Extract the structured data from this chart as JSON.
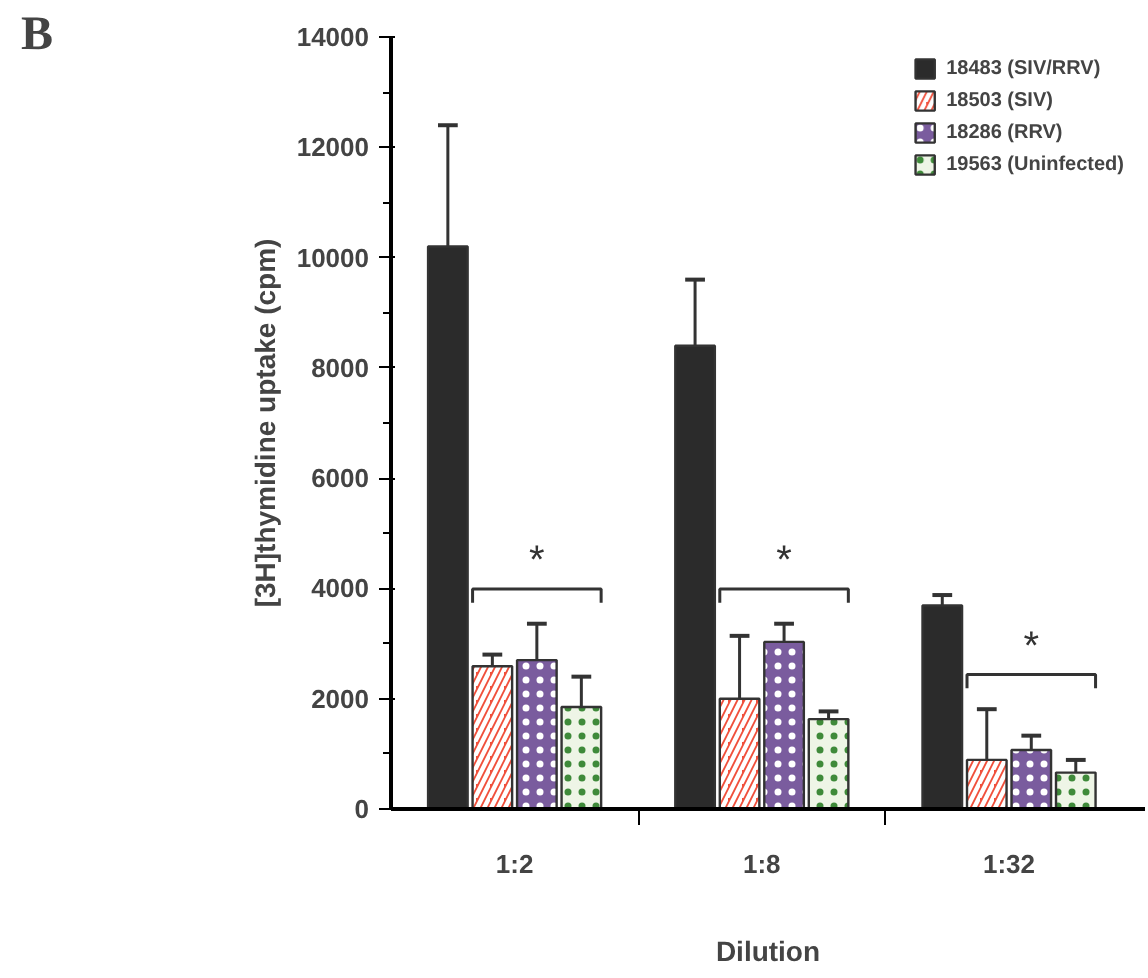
{
  "chart_data": {
    "type": "bar",
    "xlabel": "Dilution",
    "ylabel": "[3H]thymidine uptake (cpm)",
    "categories": [
      "1:2",
      "1:8",
      "1:32"
    ],
    "series": [
      {
        "name": "18483 (SIV/RRV)",
        "color": "#2b2b2b",
        "values": [
          10200,
          8400,
          3690
        ],
        "errors": [
          [
            10200,
            12400
          ],
          [
            8400,
            9600
          ],
          [
            3690,
            3880
          ]
        ]
      },
      {
        "name": "18503 (SIV)",
        "color": "#f0503c",
        "values": [
          2590,
          2000,
          890
        ],
        "errors": [
          [
            2590,
            2800
          ],
          [
            2000,
            3140
          ],
          [
            890,
            1810
          ]
        ]
      },
      {
        "name": "18286 (RRV)",
        "color": "#7a5c9e",
        "values": [
          2700,
          3030,
          1070
        ],
        "errors": [
          [
            2700,
            3360
          ],
          [
            3030,
            3360
          ],
          [
            1070,
            1330
          ]
        ]
      },
      {
        "name": "19563 (Uninfected)",
        "color": "#eef5e6",
        "values": [
          1850,
          1630,
          660
        ],
        "errors": [
          [
            1850,
            2400
          ],
          [
            1630,
            1770
          ],
          [
            660,
            890
          ]
        ]
      }
    ],
    "ylim": [
      0,
      14000
    ],
    "yticks": [
      0,
      2000,
      4000,
      6000,
      8000,
      10000,
      12000,
      14000
    ],
    "legend": "top right",
    "grid": false,
    "annotations": [
      "B",
      "*",
      "*",
      "*"
    ]
  }
}
